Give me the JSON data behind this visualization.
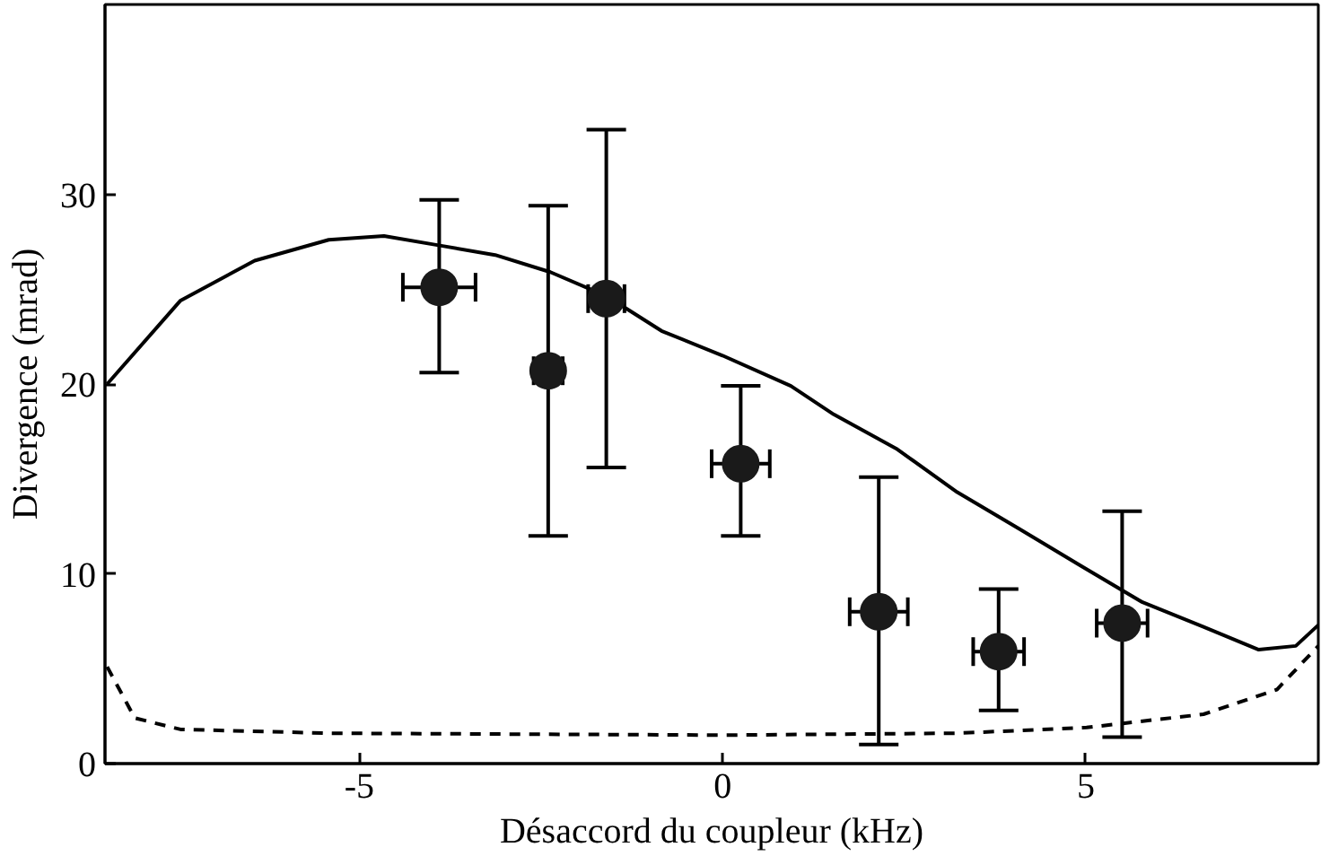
{
  "chart_data": {
    "type": "scatter",
    "xlabel": "Désaccord du coupleur (kHz)",
    "ylabel": "Divergence (mrad)",
    "xlim": [
      -8.5,
      8.2
    ],
    "ylim": [
      0,
      40
    ],
    "xticks": [
      -5,
      0,
      5
    ],
    "yticks": [
      0,
      10,
      20,
      30
    ],
    "grid": false,
    "series": [
      {
        "type": "line",
        "line_style": "solid",
        "color": "#000000",
        "x": [
          -8.47,
          -7.46,
          -6.44,
          -5.42,
          -4.66,
          -3.89,
          -3.13,
          -2.37,
          -1.58,
          -0.84,
          0,
          0.94,
          1.53,
          2.39,
          3.23,
          4.07,
          4.94,
          5.78,
          6.62,
          7.38,
          7.89,
          8.2
        ],
        "values": [
          20.0,
          24.4,
          26.5,
          27.6,
          27.8,
          27.3,
          26.8,
          25.9,
          24.6,
          22.8,
          21.5,
          19.9,
          18.4,
          16.6,
          14.3,
          12.4,
          10.4,
          8.5,
          7.2,
          6.0,
          6.2,
          7.3
        ]
      },
      {
        "type": "line",
        "line_style": "dashed",
        "color": "#000000",
        "x": [
          -8.47,
          -8.09,
          -7.46,
          -5.42,
          0,
          3.23,
          5.01,
          6.62,
          7.63,
          8.2
        ],
        "values": [
          5.1,
          2.4,
          1.8,
          1.6,
          1.5,
          1.6,
          1.9,
          2.6,
          3.9,
          6.2
        ]
      },
      {
        "marker": "circle",
        "color": "#1a1a1a",
        "x": [
          -3.9,
          -2.4,
          -1.6,
          0.25,
          2.15,
          3.8,
          5.5
        ],
        "values": [
          25.1,
          20.7,
          24.5,
          15.8,
          8.0,
          5.9,
          7.4
        ],
        "errors": [
          [
            20.6,
            29.7
          ],
          [
            12.0,
            29.4
          ],
          [
            15.6,
            33.4
          ],
          [
            12.0,
            19.9
          ],
          [
            1.0,
            15.1
          ],
          [
            2.8,
            9.2
          ],
          [
            1.4,
            13.3
          ]
        ],
        "xerrors": [
          0.5,
          0.2,
          0.25,
          0.4,
          0.4,
          0.35,
          0.35
        ]
      }
    ]
  }
}
